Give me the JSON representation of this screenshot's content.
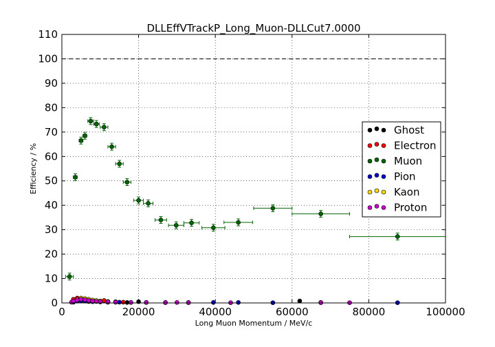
{
  "chart_data": {
    "type": "scatter",
    "title": "DLLEffVTrackP_Long_Muon-DLLCut7.0000",
    "xlabel": "Long Muon Momentum / MeV/c",
    "ylabel": "Efficiency / %",
    "xlim": [
      0,
      100000
    ],
    "ylim": [
      0,
      110
    ],
    "xticks": [
      0,
      20000,
      40000,
      60000,
      80000,
      100000
    ],
    "yticks": [
      0,
      10,
      20,
      30,
      40,
      50,
      60,
      70,
      80,
      90,
      100,
      110
    ],
    "grid": true,
    "reference_line": 100,
    "legend_position": "right",
    "series": [
      {
        "name": "Ghost",
        "color": "#000000",
        "points": [
          [
            3000,
            0.3
          ],
          [
            4000,
            0.8
          ],
          [
            5000,
            1.0
          ],
          [
            6000,
            1.0
          ],
          [
            7000,
            0.8
          ],
          [
            8000,
            0.6
          ],
          [
            10000,
            0.5
          ],
          [
            12000,
            0.3
          ],
          [
            14000,
            0.3
          ],
          [
            17000,
            0.2
          ],
          [
            20000,
            0.5
          ],
          [
            22000,
            0.2
          ],
          [
            62000,
            0.8
          ]
        ]
      },
      {
        "name": "Electron",
        "color": "#ff0000",
        "points": [
          [
            3000,
            1.5
          ],
          [
            4000,
            2.0
          ],
          [
            5000,
            1.8
          ],
          [
            6000,
            1.5
          ],
          [
            7000,
            1.2
          ],
          [
            8000,
            1.0
          ],
          [
            9000,
            0.8
          ],
          [
            10000,
            0.6
          ],
          [
            11000,
            1.0
          ],
          [
            12000,
            0.5
          ],
          [
            14000,
            0.4
          ],
          [
            16000,
            0.3
          ]
        ]
      },
      {
        "name": "Muon",
        "color": "#006400",
        "points": [
          {
            "x": 2000,
            "y": 10.8,
            "xerr": 1000
          },
          {
            "x": 3500,
            "y": 51.5,
            "xerr": 500
          },
          {
            "x": 5000,
            "y": 66.5,
            "xerr": 500
          },
          {
            "x": 6000,
            "y": 68.5,
            "xerr": 500
          },
          {
            "x": 7500,
            "y": 74.5,
            "xerr": 750
          },
          {
            "x": 9000,
            "y": 73.3,
            "xerr": 750
          },
          {
            "x": 11000,
            "y": 72.0,
            "xerr": 1000
          },
          {
            "x": 13000,
            "y": 64.0,
            "xerr": 1000
          },
          {
            "x": 15000,
            "y": 57.0,
            "xerr": 1000
          },
          {
            "x": 17000,
            "y": 49.5,
            "xerr": 1000
          },
          {
            "x": 20000,
            "y": 42.0,
            "xerr": 1250
          },
          {
            "x": 22500,
            "y": 40.8,
            "xerr": 1250
          },
          {
            "x": 25800,
            "y": 34.0,
            "xerr": 1500
          },
          {
            "x": 29800,
            "y": 31.8,
            "xerr": 2000
          },
          {
            "x": 33800,
            "y": 32.8,
            "xerr": 2000
          },
          {
            "x": 39500,
            "y": 30.8,
            "xerr": 3000
          },
          {
            "x": 46000,
            "y": 33.0,
            "xerr": 3750
          },
          {
            "x": 55000,
            "y": 38.8,
            "xerr": 5000
          },
          {
            "x": 67500,
            "y": 36.5,
            "xerr": 7500
          },
          {
            "x": 87500,
            "y": 27.2,
            "xerr": 12500
          }
        ]
      },
      {
        "name": "Pion",
        "color": "#0000cd",
        "points": [
          [
            3000,
            0.5
          ],
          [
            4000,
            0.8
          ],
          [
            5000,
            0.9
          ],
          [
            6000,
            0.8
          ],
          [
            7000,
            0.6
          ],
          [
            8000,
            0.5
          ],
          [
            10000,
            0.4
          ],
          [
            12000,
            0.3
          ],
          [
            15000,
            0.3
          ],
          [
            18000,
            0.2
          ],
          [
            22000,
            0.2
          ],
          [
            27000,
            0.2
          ],
          [
            33000,
            0.2
          ],
          [
            39500,
            0.2
          ],
          [
            46000,
            0.2
          ],
          [
            55000,
            0.1
          ],
          [
            67500,
            0.2
          ],
          [
            87500,
            0.1
          ]
        ]
      },
      {
        "name": "Kaon",
        "color": "#ffd700",
        "points": [
          [
            3000,
            0.8
          ],
          [
            4000,
            1.5
          ],
          [
            5000,
            2.0
          ],
          [
            6000,
            1.8
          ],
          [
            7000,
            1.5
          ],
          [
            8000,
            1.2
          ],
          [
            9000,
            1.0
          ],
          [
            10000,
            0.8
          ],
          [
            12000,
            0.6
          ],
          [
            14000,
            0.5
          ]
        ]
      },
      {
        "name": "Proton",
        "color": "#cc00cc",
        "points": [
          [
            2500,
            0.3
          ],
          [
            3000,
            0.8
          ],
          [
            4000,
            1.2
          ],
          [
            5000,
            1.5
          ],
          [
            6000,
            1.3
          ],
          [
            7000,
            1.0
          ],
          [
            8000,
            0.8
          ],
          [
            9000,
            0.6
          ],
          [
            10000,
            0.5
          ],
          [
            12000,
            0.4
          ],
          [
            14000,
            0.3
          ],
          [
            18000,
            0.2
          ],
          [
            22000,
            0.2
          ],
          [
            27000,
            0.1
          ],
          [
            30000,
            0.2
          ],
          [
            33000,
            0.1
          ],
          [
            44000,
            0.1
          ],
          [
            67500,
            0.1
          ],
          [
            75000,
            0.1
          ]
        ]
      }
    ]
  }
}
